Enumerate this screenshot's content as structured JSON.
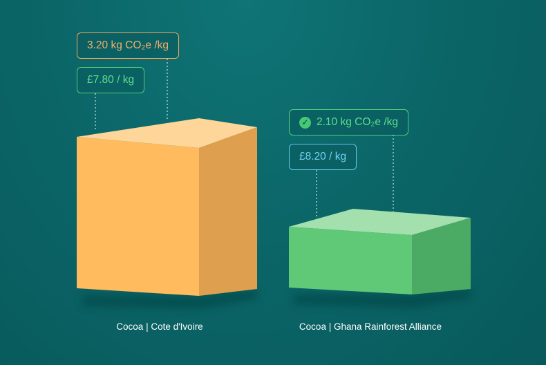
{
  "items": [
    {
      "name": "Cocoa | Cote d'Ivoire",
      "emissions": "3.20 kg CO₂e /kg",
      "price": "£7.80 / kg",
      "colors": {
        "top": "#ffd69a",
        "front": "#ffbb5d",
        "side": "#de9f4e"
      }
    },
    {
      "name": "Cocoa | Ghana Rainforest Alliance",
      "emissions": "2.10 kg CO₂e /kg",
      "price": "£8.20 / kg",
      "emissions_icon": "check-circle-icon",
      "colors": {
        "top": "#a3e0ad",
        "front": "#5fc977",
        "side": "#4bab64"
      }
    }
  ],
  "tag_colors": {
    "orange": "#f5a95a",
    "green": "#4fd07a",
    "blue": "#5ec7ea"
  },
  "background": "#0b6668"
}
